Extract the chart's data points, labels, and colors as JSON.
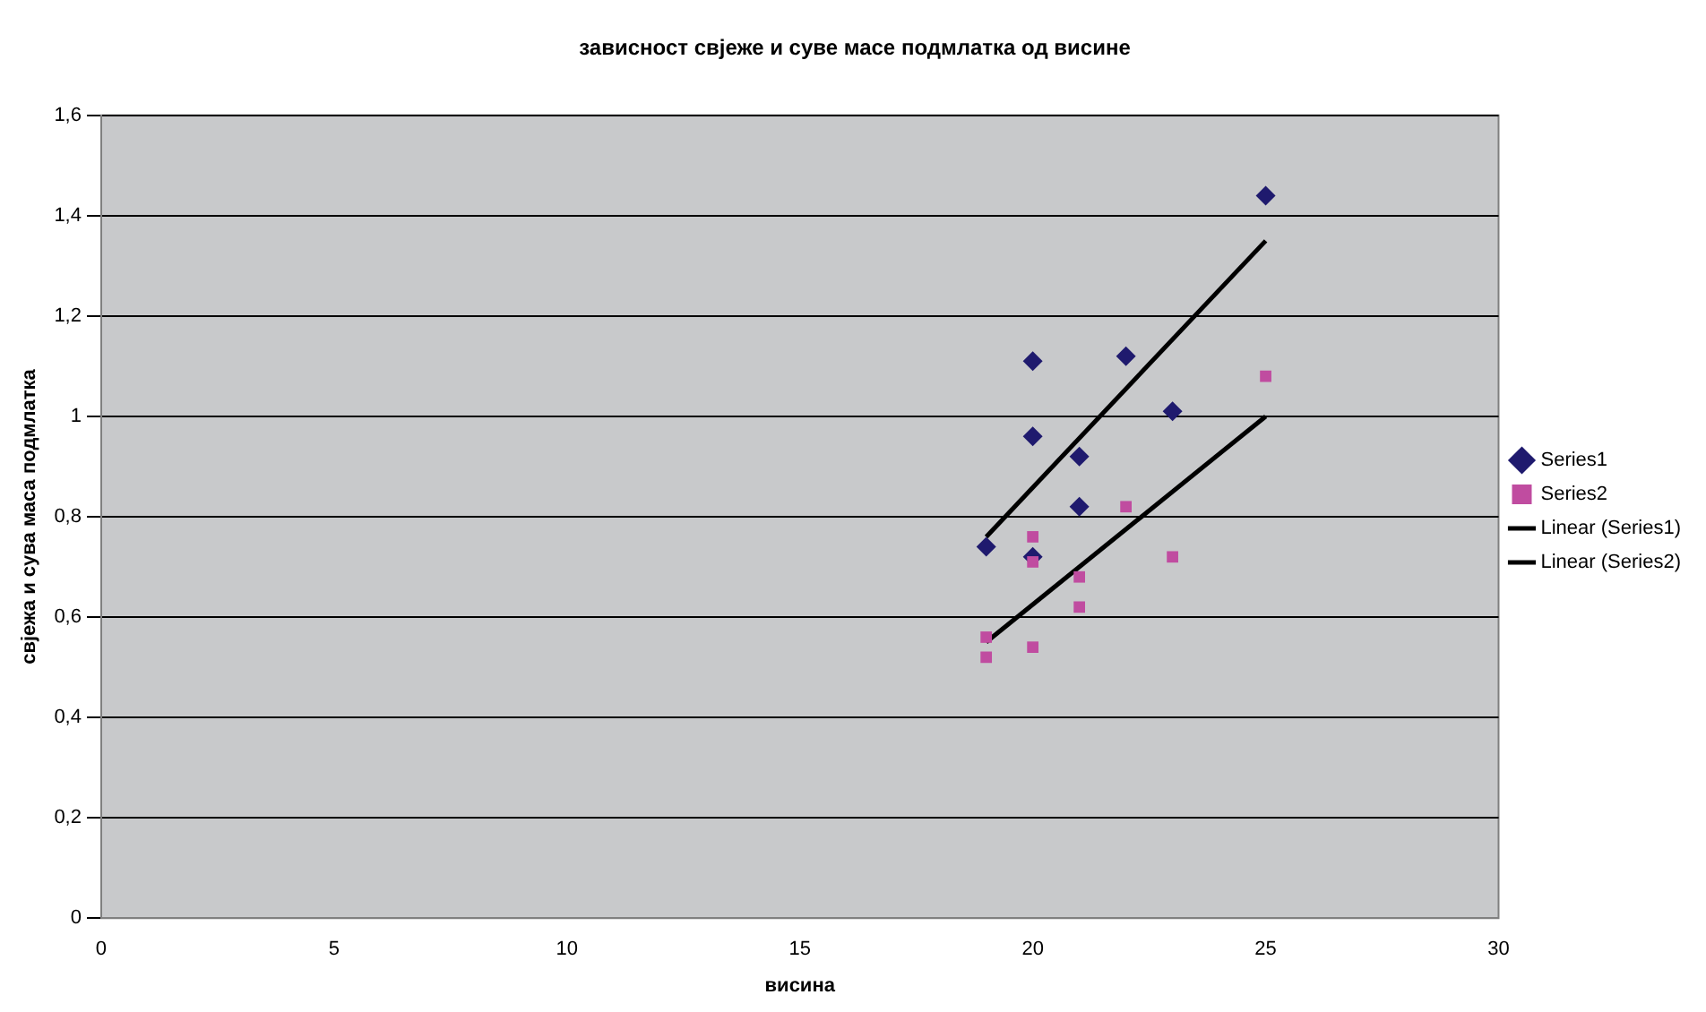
{
  "chart_data": {
    "type": "scatter",
    "title": "зависност свјеже и суве масе подмлатка од висине",
    "xlabel": "висина",
    "ylabel": "свјежа и сува маса подмлатка",
    "xlim": [
      0,
      30
    ],
    "xticks": [
      0,
      5,
      10,
      15,
      20,
      25,
      30
    ],
    "ylim": [
      0,
      1.6
    ],
    "yticks": [
      {
        "value": 0,
        "label": "0"
      },
      {
        "value": 0.2,
        "label": "0,2"
      },
      {
        "value": 0.4,
        "label": "0,4"
      },
      {
        "value": 0.6,
        "label": "0,6"
      },
      {
        "value": 0.8,
        "label": "0,8"
      },
      {
        "value": 1,
        "label": "1"
      },
      {
        "value": 1.2,
        "label": "1,2"
      },
      {
        "value": 1.4,
        "label": "1,4"
      },
      {
        "value": 1.6,
        "label": "1,6"
      }
    ],
    "grid": "y",
    "legend": "right",
    "series": [
      {
        "name": "Series1",
        "color": "#1f1a6e",
        "marker": "diamond",
        "x": [
          19,
          20,
          20,
          20,
          21,
          21,
          22,
          23,
          25
        ],
        "values": [
          0.74,
          1.11,
          0.96,
          0.72,
          0.92,
          0.82,
          1.12,
          1.01,
          1.44
        ]
      },
      {
        "name": "Series2",
        "color": "#c04ca0",
        "marker": "square",
        "x": [
          19,
          19,
          20,
          20,
          20,
          21,
          21,
          22,
          23,
          25
        ],
        "values": [
          0.56,
          0.52,
          0.76,
          0.71,
          0.54,
          0.68,
          0.62,
          0.82,
          0.72,
          1.08
        ]
      },
      {
        "name": "Linear (Series1)",
        "type": "line",
        "color": "#000000",
        "marker": "none",
        "x": [
          19,
          25
        ],
        "values": [
          0.76,
          1.35
        ]
      },
      {
        "name": "Linear (Series2)",
        "type": "line",
        "color": "#000000",
        "marker": "none",
        "x": [
          19,
          25
        ],
        "values": [
          0.55,
          1.0
        ]
      }
    ]
  }
}
